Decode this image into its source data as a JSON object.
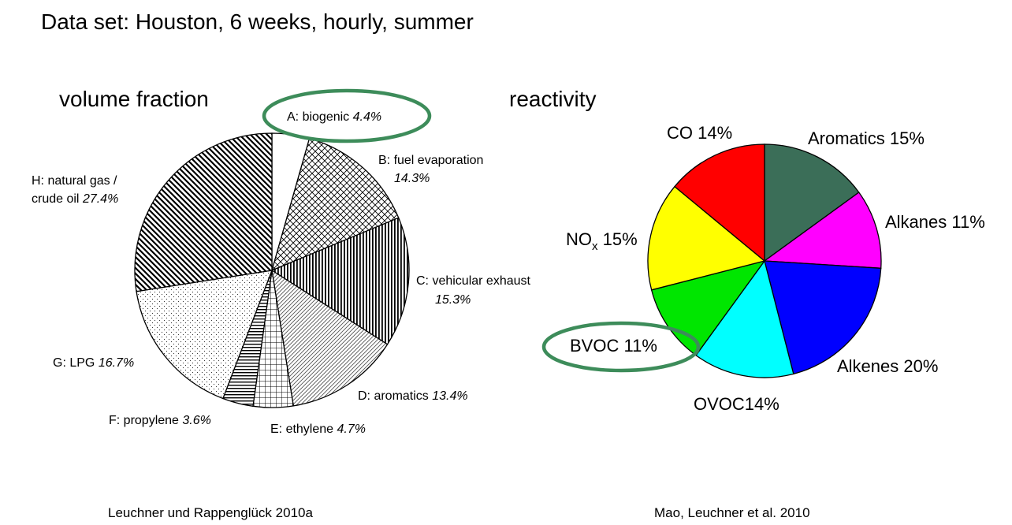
{
  "header": {
    "title": "Data set: Houston, 6 weeks, hourly, summer"
  },
  "chart_data": [
    {
      "type": "pie",
      "title": "volume fraction",
      "source": "Leuchner und Rappenglück 2010a",
      "slices": [
        {
          "label": "A: biogenic",
          "value": "4.4%",
          "pct": 4.4,
          "highlighted": true,
          "fill": "white"
        },
        {
          "label": "B: fuel evaporation",
          "value": "14.3%",
          "pct": 14.3,
          "fill": "crosshatch"
        },
        {
          "label": "C: vehicular exhaust",
          "value": "15.3%",
          "pct": 15.3,
          "fill": "vertical-lines"
        },
        {
          "label": "D: aromatics",
          "value": "13.4%",
          "pct": 13.4,
          "fill": "diagonal-fine"
        },
        {
          "label": "E: ethylene",
          "value": "4.7%",
          "pct": 4.7,
          "fill": "grid"
        },
        {
          "label": "F: propylene",
          "value": "3.6%",
          "pct": 3.6,
          "fill": "horizontal-lines"
        },
        {
          "label": "G: LPG",
          "value": "16.7%",
          "pct": 16.7,
          "fill": "dots"
        },
        {
          "label": "H: natural gas / crude oil",
          "label_lines": [
            "H: natural gas /",
            "crude oil"
          ],
          "value": "27.4%",
          "pct": 27.4,
          "fill": "diagonal-bold"
        }
      ]
    },
    {
      "type": "pie",
      "title": "reactivity",
      "source": "Mao, Leuchner et al. 2010",
      "slices": [
        {
          "label": "Aromatics",
          "value": "15%",
          "pct": 15,
          "color": "#3b6e58"
        },
        {
          "label": "Alkanes",
          "value": "11%",
          "pct": 11,
          "color": "#ff00ff"
        },
        {
          "label": "Alkenes",
          "value": "20%",
          "pct": 20,
          "color": "#0000ff"
        },
        {
          "label": "OVOC",
          "value": "14%",
          "pct": 14,
          "color": "#00ffff"
        },
        {
          "label": "BVOC",
          "value": "11%",
          "pct": 11,
          "color": "#00e600",
          "highlighted": true
        },
        {
          "label": "NOx",
          "value": "15%",
          "pct": 15,
          "color": "#ffff00"
        },
        {
          "label": "CO",
          "value": "14%",
          "pct": 14,
          "color": "#ff0000"
        }
      ]
    }
  ],
  "colors": {
    "highlight_ellipse": "#3d8c5a"
  }
}
